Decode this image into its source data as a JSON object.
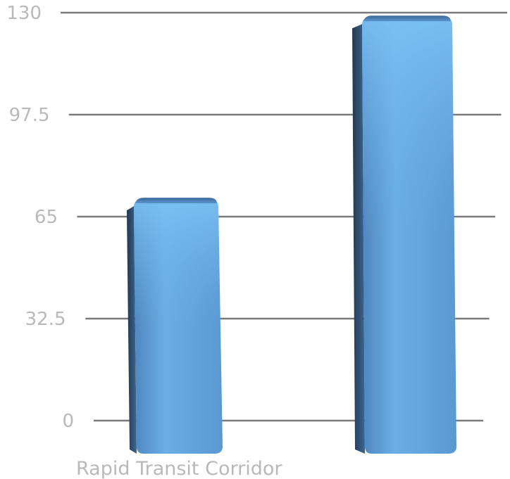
{
  "chart_data": {
    "type": "bar",
    "categories": [
      "Rapid Transit Corridor",
      ""
    ],
    "values": [
      67,
      125
    ],
    "ylim": [
      0,
      130
    ],
    "yticks": [
      "0",
      "32.5",
      "65",
      "97.5",
      "130"
    ],
    "grid": true,
    "title": "",
    "xlabel": "",
    "ylabel": "",
    "style": "3d-perspective",
    "colors": {
      "bar": "#5b9bd5",
      "bar_light": "#86c8f6",
      "bar_dark": "#2f4f73",
      "grid": "#7a7a7a",
      "text": "#b9b9b9"
    }
  }
}
